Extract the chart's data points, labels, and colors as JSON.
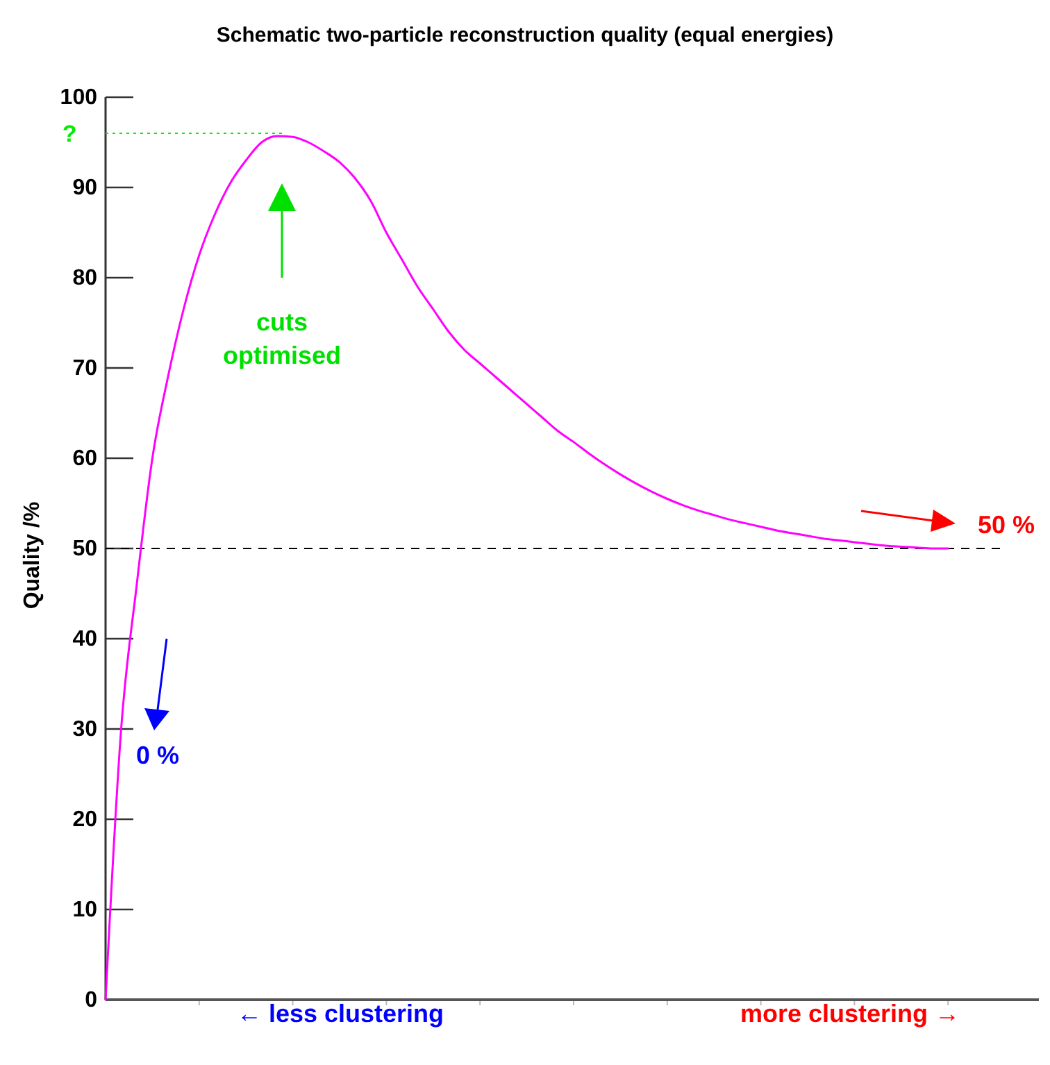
{
  "chart_data": {
    "type": "line",
    "title": "Schematic two-particle reconstruction quality (equal energies)",
    "ylabel": "Quality /%",
    "categories": [
      null,
      null,
      null,
      null,
      null,
      null,
      null,
      null,
      null,
      null,
      null,
      null,
      null,
      null,
      null,
      null,
      null,
      null,
      null,
      null,
      null,
      null,
      null,
      null,
      null,
      null,
      null,
      null,
      null,
      null,
      null,
      null,
      null,
      null,
      null,
      null,
      null,
      null,
      null,
      null,
      null,
      null,
      null,
      null,
      null,
      null,
      null,
      null,
      null,
      null,
      null,
      null,
      null,
      null,
      null,
      null,
      null,
      null,
      null,
      null,
      null
    ],
    "series": [
      {
        "color": "#ff00ff",
        "values": [
          0,
          30,
          46,
          60,
          69,
          76.5,
          82.5,
          87,
          90.5,
          93,
          95,
          95.7,
          95.6,
          95,
          94,
          92.8,
          91,
          88.5,
          85,
          82,
          79,
          76.5,
          74,
          72,
          70.5,
          69,
          67.5,
          66,
          64.5,
          63,
          61.8,
          60.5,
          59.3,
          58.2,
          57.2,
          56.3,
          55.5,
          54.8,
          54.2,
          53.7,
          53.2,
          52.8,
          52.4,
          52,
          51.7,
          51.4,
          51.1,
          50.9,
          50.7,
          50.5,
          50.3,
          50.2,
          50.1,
          50,
          50,
          null,
          null,
          null,
          null,
          null,
          null
        ]
      }
    ],
    "ylim": [
      0,
      100
    ],
    "yticks": [
      0,
      10,
      20,
      30,
      40,
      50,
      60,
      70,
      80,
      90,
      100
    ],
    "tick_labels": "y",
    "grid": false,
    "marker": "none",
    "line_style": "solid",
    "ref_lines": [
      {
        "axis": "y",
        "value": 50,
        "color": "#000000",
        "line_style": "dashed"
      },
      {
        "axis": "y",
        "value": 96,
        "label": "?",
        "color": "#00ee00",
        "line_style": "dotted"
      }
    ],
    "annotations": [
      "cuts optimised",
      "0 %",
      "50 %",
      "← less clustering",
      "more clustering →"
    ]
  }
}
